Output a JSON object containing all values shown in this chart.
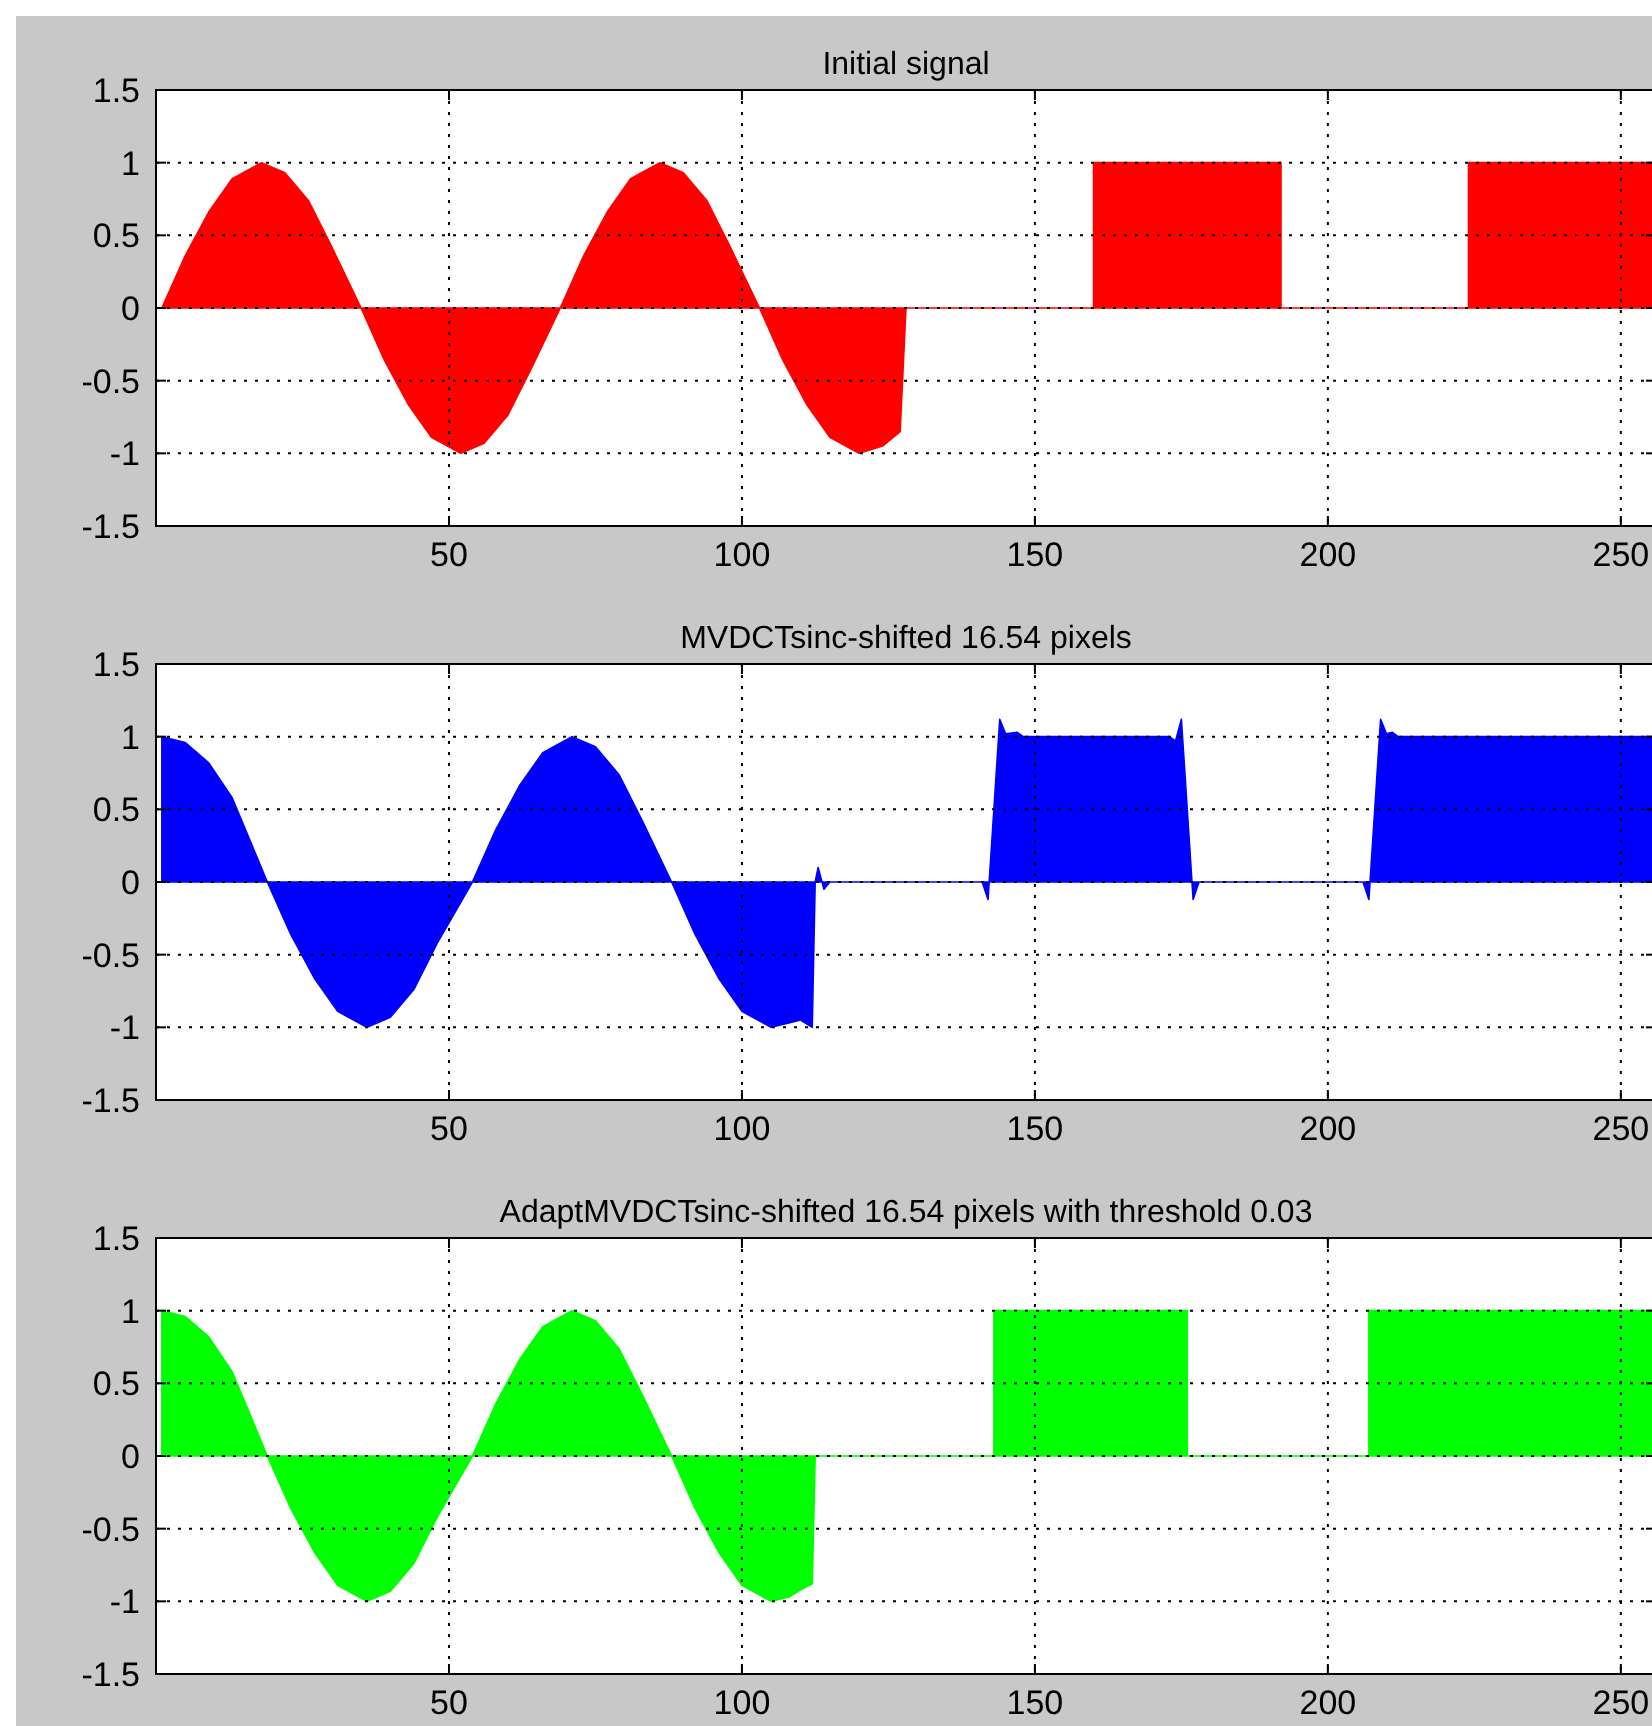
{
  "chart_data": [
    {
      "type": "area",
      "title": "Initial signal",
      "xlim": [
        0,
        256
      ],
      "ylim": [
        -1.5,
        1.5
      ],
      "xticks": [
        50,
        100,
        150,
        200,
        250
      ],
      "yticks": [
        -1.5,
        -1,
        -0.5,
        0,
        0.5,
        1,
        1.5
      ],
      "grid": true,
      "line_style": "dotted",
      "series": [
        {
          "color": "#ff0000",
          "x": [
            1,
            5,
            9,
            13,
            18,
            22,
            26,
            30,
            35,
            39,
            43,
            47,
            52,
            56,
            60,
            64,
            69,
            73,
            77,
            81,
            86,
            90,
            94,
            98,
            103,
            107,
            111,
            115,
            120,
            124,
            127,
            128,
            160,
            160,
            192,
            192,
            224,
            224,
            256
          ],
          "values": [
            0,
            0.36,
            0.66,
            0.89,
            1,
            0.93,
            0.74,
            0.42,
            0,
            -0.36,
            -0.66,
            -0.89,
            -1,
            -0.93,
            -0.74,
            -0.42,
            0,
            0.36,
            0.66,
            0.89,
            1,
            0.93,
            0.74,
            0.42,
            0,
            -0.36,
            -0.66,
            -0.89,
            -1,
            -0.95,
            -0.85,
            0,
            0,
            1,
            1,
            0,
            0,
            1,
            1
          ]
        }
      ]
    },
    {
      "type": "area",
      "title": "MVDCTsinc-shifted 16.54 pixels",
      "xlim": [
        0,
        256
      ],
      "ylim": [
        -1.5,
        1.5
      ],
      "xticks": [
        50,
        100,
        150,
        200,
        250
      ],
      "yticks": [
        -1.5,
        -1,
        -0.5,
        0,
        0.5,
        1,
        1.5
      ],
      "grid": true,
      "line_style": "dotted",
      "series": [
        {
          "color": "#0000ff",
          "x": [
            1,
            5,
            9,
            13,
            19,
            23,
            27,
            31,
            36,
            40,
            44,
            48,
            54,
            58,
            62,
            66,
            71,
            75,
            79,
            83,
            88,
            92,
            96,
            100,
            105,
            108,
            110,
            112,
            112.5,
            113,
            114,
            115,
            141,
            142,
            143,
            144,
            145,
            147,
            148,
            173,
            174,
            175,
            176,
            177,
            178,
            206,
            207,
            208,
            209,
            210,
            211,
            212,
            256
          ],
          "values": [
            1,
            0.96,
            0.82,
            0.58,
            0,
            -0.36,
            -0.66,
            -0.89,
            -1,
            -0.93,
            -0.74,
            -0.42,
            0,
            0.36,
            0.66,
            0.89,
            1,
            0.93,
            0.74,
            0.42,
            0,
            -0.36,
            -0.66,
            -0.89,
            -1,
            -0.97,
            -0.95,
            -1,
            0,
            0.1,
            -0.05,
            0,
            0,
            -0.12,
            0.5,
            1.12,
            1.02,
            1.03,
            1,
            1,
            0.97,
            1.12,
            0.5,
            -0.12,
            0,
            0,
            -0.12,
            0.5,
            1.12,
            1.02,
            1.03,
            1,
            1
          ]
        }
      ]
    },
    {
      "type": "area",
      "title": "AdaptMVDCTsinc-shifted 16.54 pixels with threshold 0.03",
      "xlim": [
        0,
        256
      ],
      "ylim": [
        -1.5,
        1.5
      ],
      "xticks": [
        50,
        100,
        150,
        200,
        250
      ],
      "yticks": [
        -1.5,
        -1,
        -0.5,
        0,
        0.5,
        1,
        1.5
      ],
      "grid": true,
      "line_style": "dotted",
      "series": [
        {
          "color": "#00ff00",
          "x": [
            1,
            5,
            9,
            13,
            19,
            23,
            27,
            31,
            36,
            40,
            44,
            48,
            54,
            58,
            62,
            66,
            71,
            75,
            79,
            83,
            88,
            92,
            96,
            100,
            105,
            108,
            110,
            112,
            112.5,
            143,
            143,
            176,
            176,
            207,
            207,
            256
          ],
          "values": [
            1,
            0.96,
            0.82,
            0.58,
            0,
            -0.36,
            -0.66,
            -0.89,
            -1,
            -0.93,
            -0.74,
            -0.42,
            0,
            0.36,
            0.66,
            0.89,
            1,
            0.93,
            0.74,
            0.42,
            0,
            -0.36,
            -0.66,
            -0.89,
            -1,
            -0.97,
            -0.92,
            -0.88,
            0,
            0,
            1,
            1,
            0,
            0,
            1,
            1
          ]
        }
      ]
    }
  ]
}
